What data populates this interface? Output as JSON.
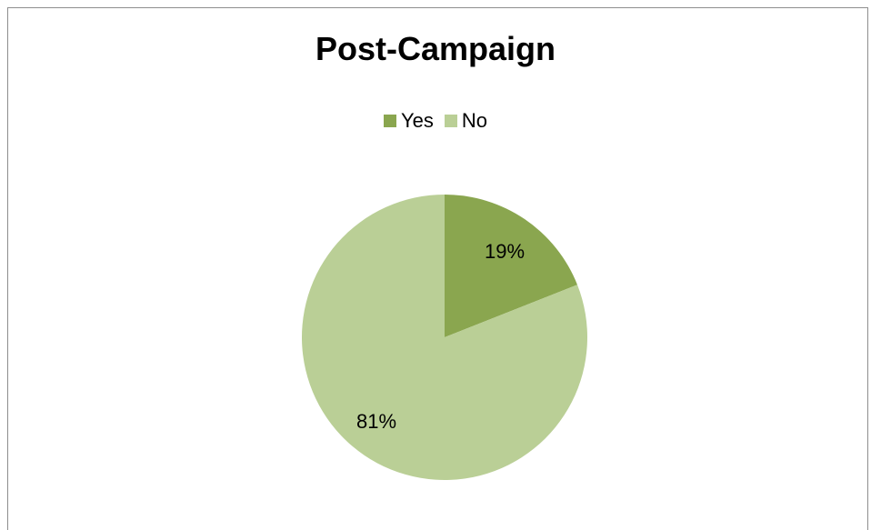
{
  "chart_data": {
    "type": "pie",
    "title": "Post-Campaign",
    "legend_position": "top",
    "categories": [
      "Yes",
      "No"
    ],
    "values": [
      19,
      81
    ],
    "data_labels": [
      "19%",
      "81%"
    ],
    "colors": [
      "#8aa64f",
      "#bacf96"
    ]
  }
}
